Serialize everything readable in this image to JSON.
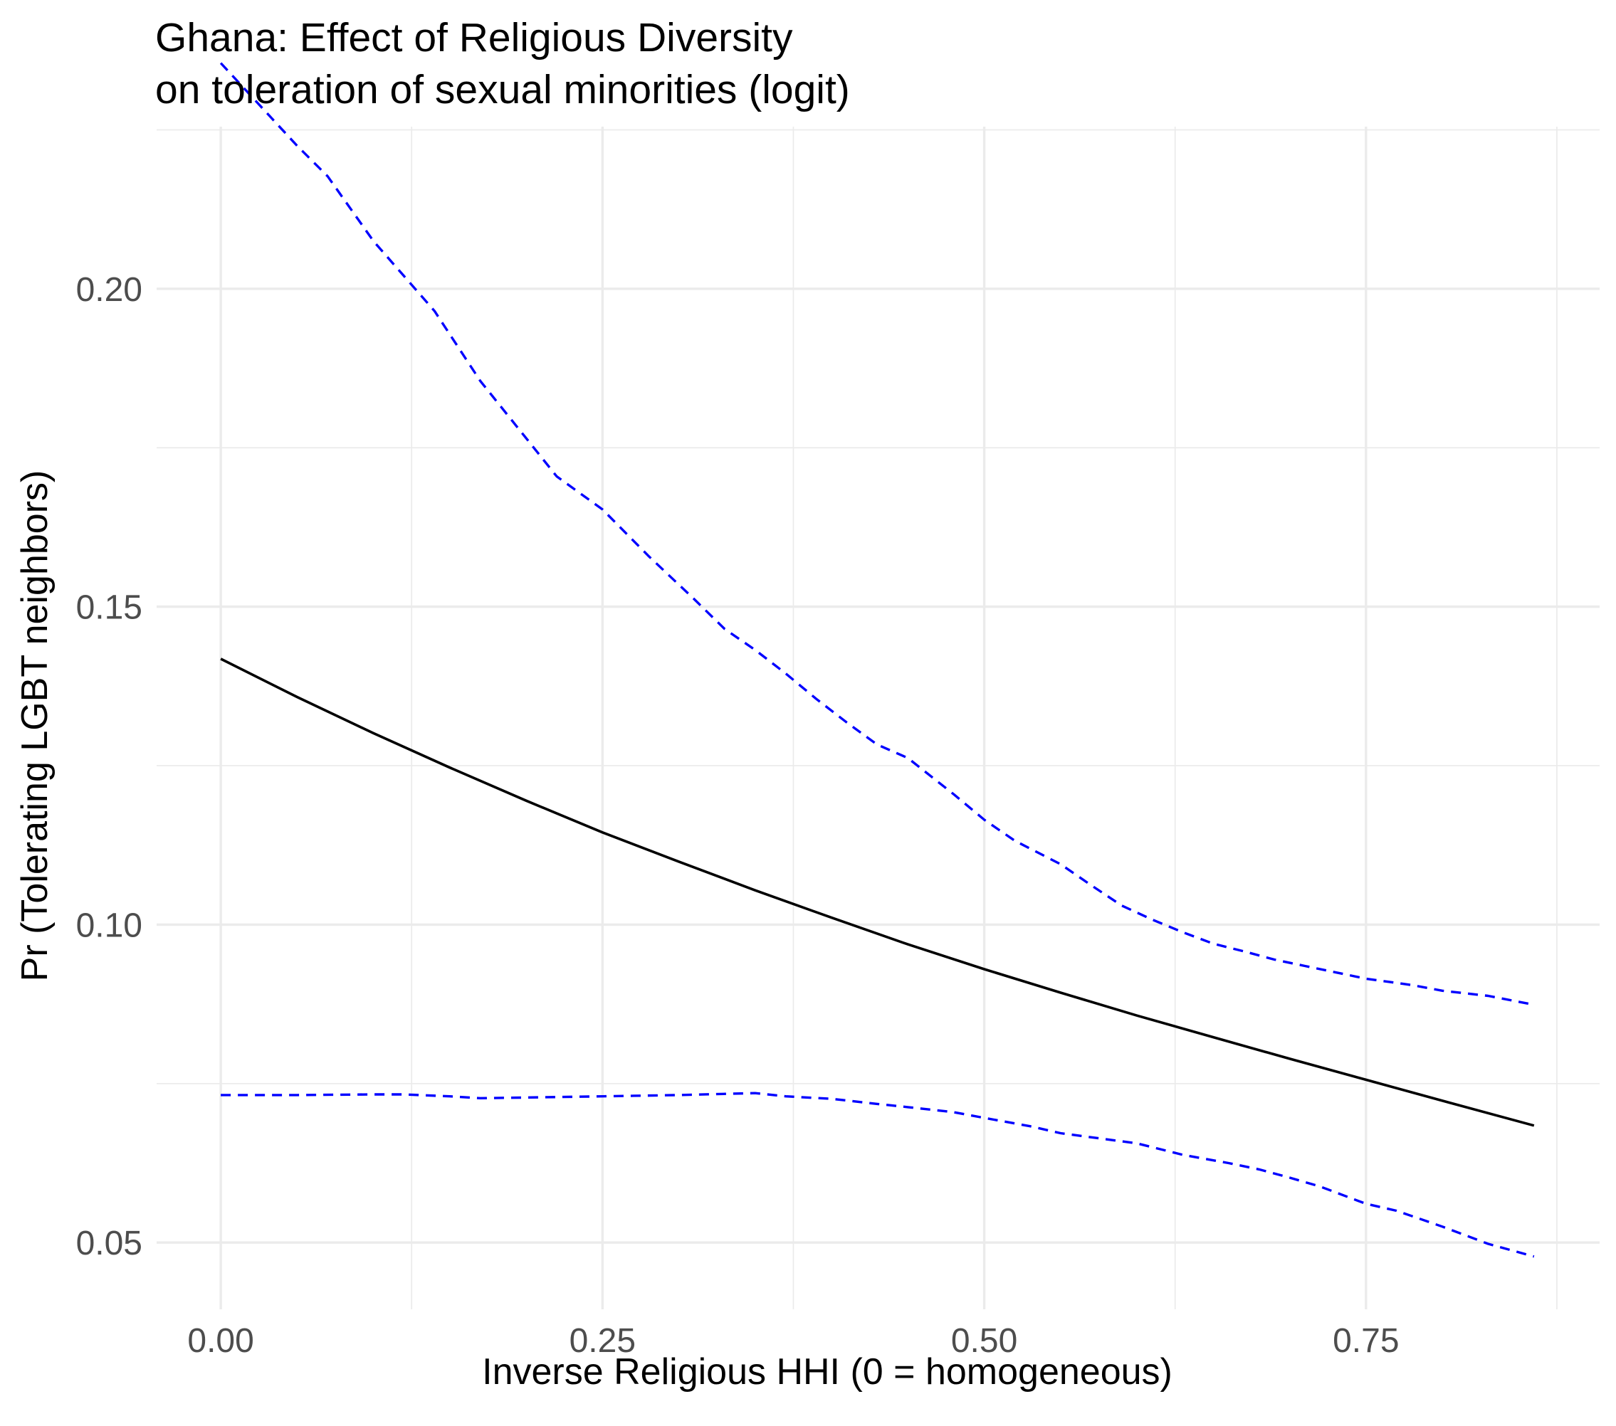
{
  "chart_data": {
    "type": "line",
    "title": "Ghana: Effect of Religious Diversity",
    "subtitle": "on toleration of sexual minorities (logit)",
    "xlabel": "Inverse Religious HHI (0 = homogeneous)",
    "ylabel": "Pr (Tolerating LGBT neighbors)",
    "xlim": [
      -0.042,
      0.903
    ],
    "ylim": [
      0.0395,
      0.2255
    ],
    "x_ticks": [
      0.0,
      0.25,
      0.5,
      0.75
    ],
    "x_tick_labels": [
      "0.00",
      "0.25",
      "0.50",
      "0.75"
    ],
    "x_minor": [
      0.125,
      0.375,
      0.625,
      0.875
    ],
    "y_ticks": [
      0.05,
      0.1,
      0.15,
      0.2
    ],
    "y_tick_labels": [
      "0.05",
      "0.10",
      "0.15",
      "0.20"
    ],
    "y_minor": [
      0.075,
      0.125,
      0.175,
      0.225
    ],
    "grid": true,
    "colors": {
      "estimate": "#000000",
      "ci": "#0000ff"
    },
    "series": [
      {
        "style": "solid",
        "color": "#000000",
        "x": [
          0.0,
          0.05,
          0.1,
          0.15,
          0.2,
          0.25,
          0.3,
          0.35,
          0.4,
          0.45,
          0.5,
          0.55,
          0.6,
          0.65,
          0.7,
          0.75,
          0.8,
          0.86
        ],
        "y": [
          0.1418,
          0.1358,
          0.1301,
          0.1247,
          0.1195,
          0.1145,
          0.1099,
          0.1054,
          0.1011,
          0.0969,
          0.093,
          0.0893,
          0.0857,
          0.0823,
          0.0789,
          0.0756,
          0.0723,
          0.0684
        ]
      },
      {
        "style": "dashed",
        "color": "#0000ff",
        "x": [
          0.0,
          0.05,
          0.07,
          0.1,
          0.14,
          0.17,
          0.2,
          0.22,
          0.25,
          0.28,
          0.31,
          0.33,
          0.35,
          0.37,
          0.39,
          0.41,
          0.43,
          0.45,
          0.48,
          0.5,
          0.52,
          0.55,
          0.57,
          0.59,
          0.61,
          0.63,
          0.65,
          0.67,
          0.69,
          0.71,
          0.73,
          0.75,
          0.78,
          0.8,
          0.83,
          0.86
        ],
        "y": [
          0.2355,
          0.2225,
          0.2177,
          0.2075,
          0.1965,
          0.1855,
          0.1765,
          0.1705,
          0.1653,
          0.158,
          0.1512,
          0.1465,
          0.1432,
          0.1395,
          0.1355,
          0.1318,
          0.1283,
          0.1262,
          0.1205,
          0.1165,
          0.1132,
          0.1095,
          0.1062,
          0.103,
          0.1008,
          0.0988,
          0.097,
          0.0958,
          0.0945,
          0.0935,
          0.0925,
          0.0915,
          0.0905,
          0.0896,
          0.0888,
          0.0874
        ]
      },
      {
        "style": "dashed",
        "color": "#0000ff",
        "x": [
          0.0,
          0.05,
          0.1,
          0.12,
          0.15,
          0.17,
          0.2,
          0.25,
          0.3,
          0.35,
          0.37,
          0.4,
          0.43,
          0.45,
          0.48,
          0.5,
          0.53,
          0.55,
          0.6,
          0.63,
          0.66,
          0.68,
          0.7,
          0.72,
          0.75,
          0.77,
          0.8,
          0.83,
          0.86
        ],
        "y": [
          0.0732,
          0.0732,
          0.0733,
          0.0733,
          0.073,
          0.0727,
          0.0728,
          0.073,
          0.0732,
          0.0735,
          0.073,
          0.0726,
          0.0718,
          0.0713,
          0.0705,
          0.0696,
          0.0683,
          0.0672,
          0.0656,
          0.0638,
          0.0625,
          0.0615,
          0.0602,
          0.0588,
          0.0561,
          0.055,
          0.0525,
          0.0498,
          0.0478
        ]
      }
    ]
  }
}
